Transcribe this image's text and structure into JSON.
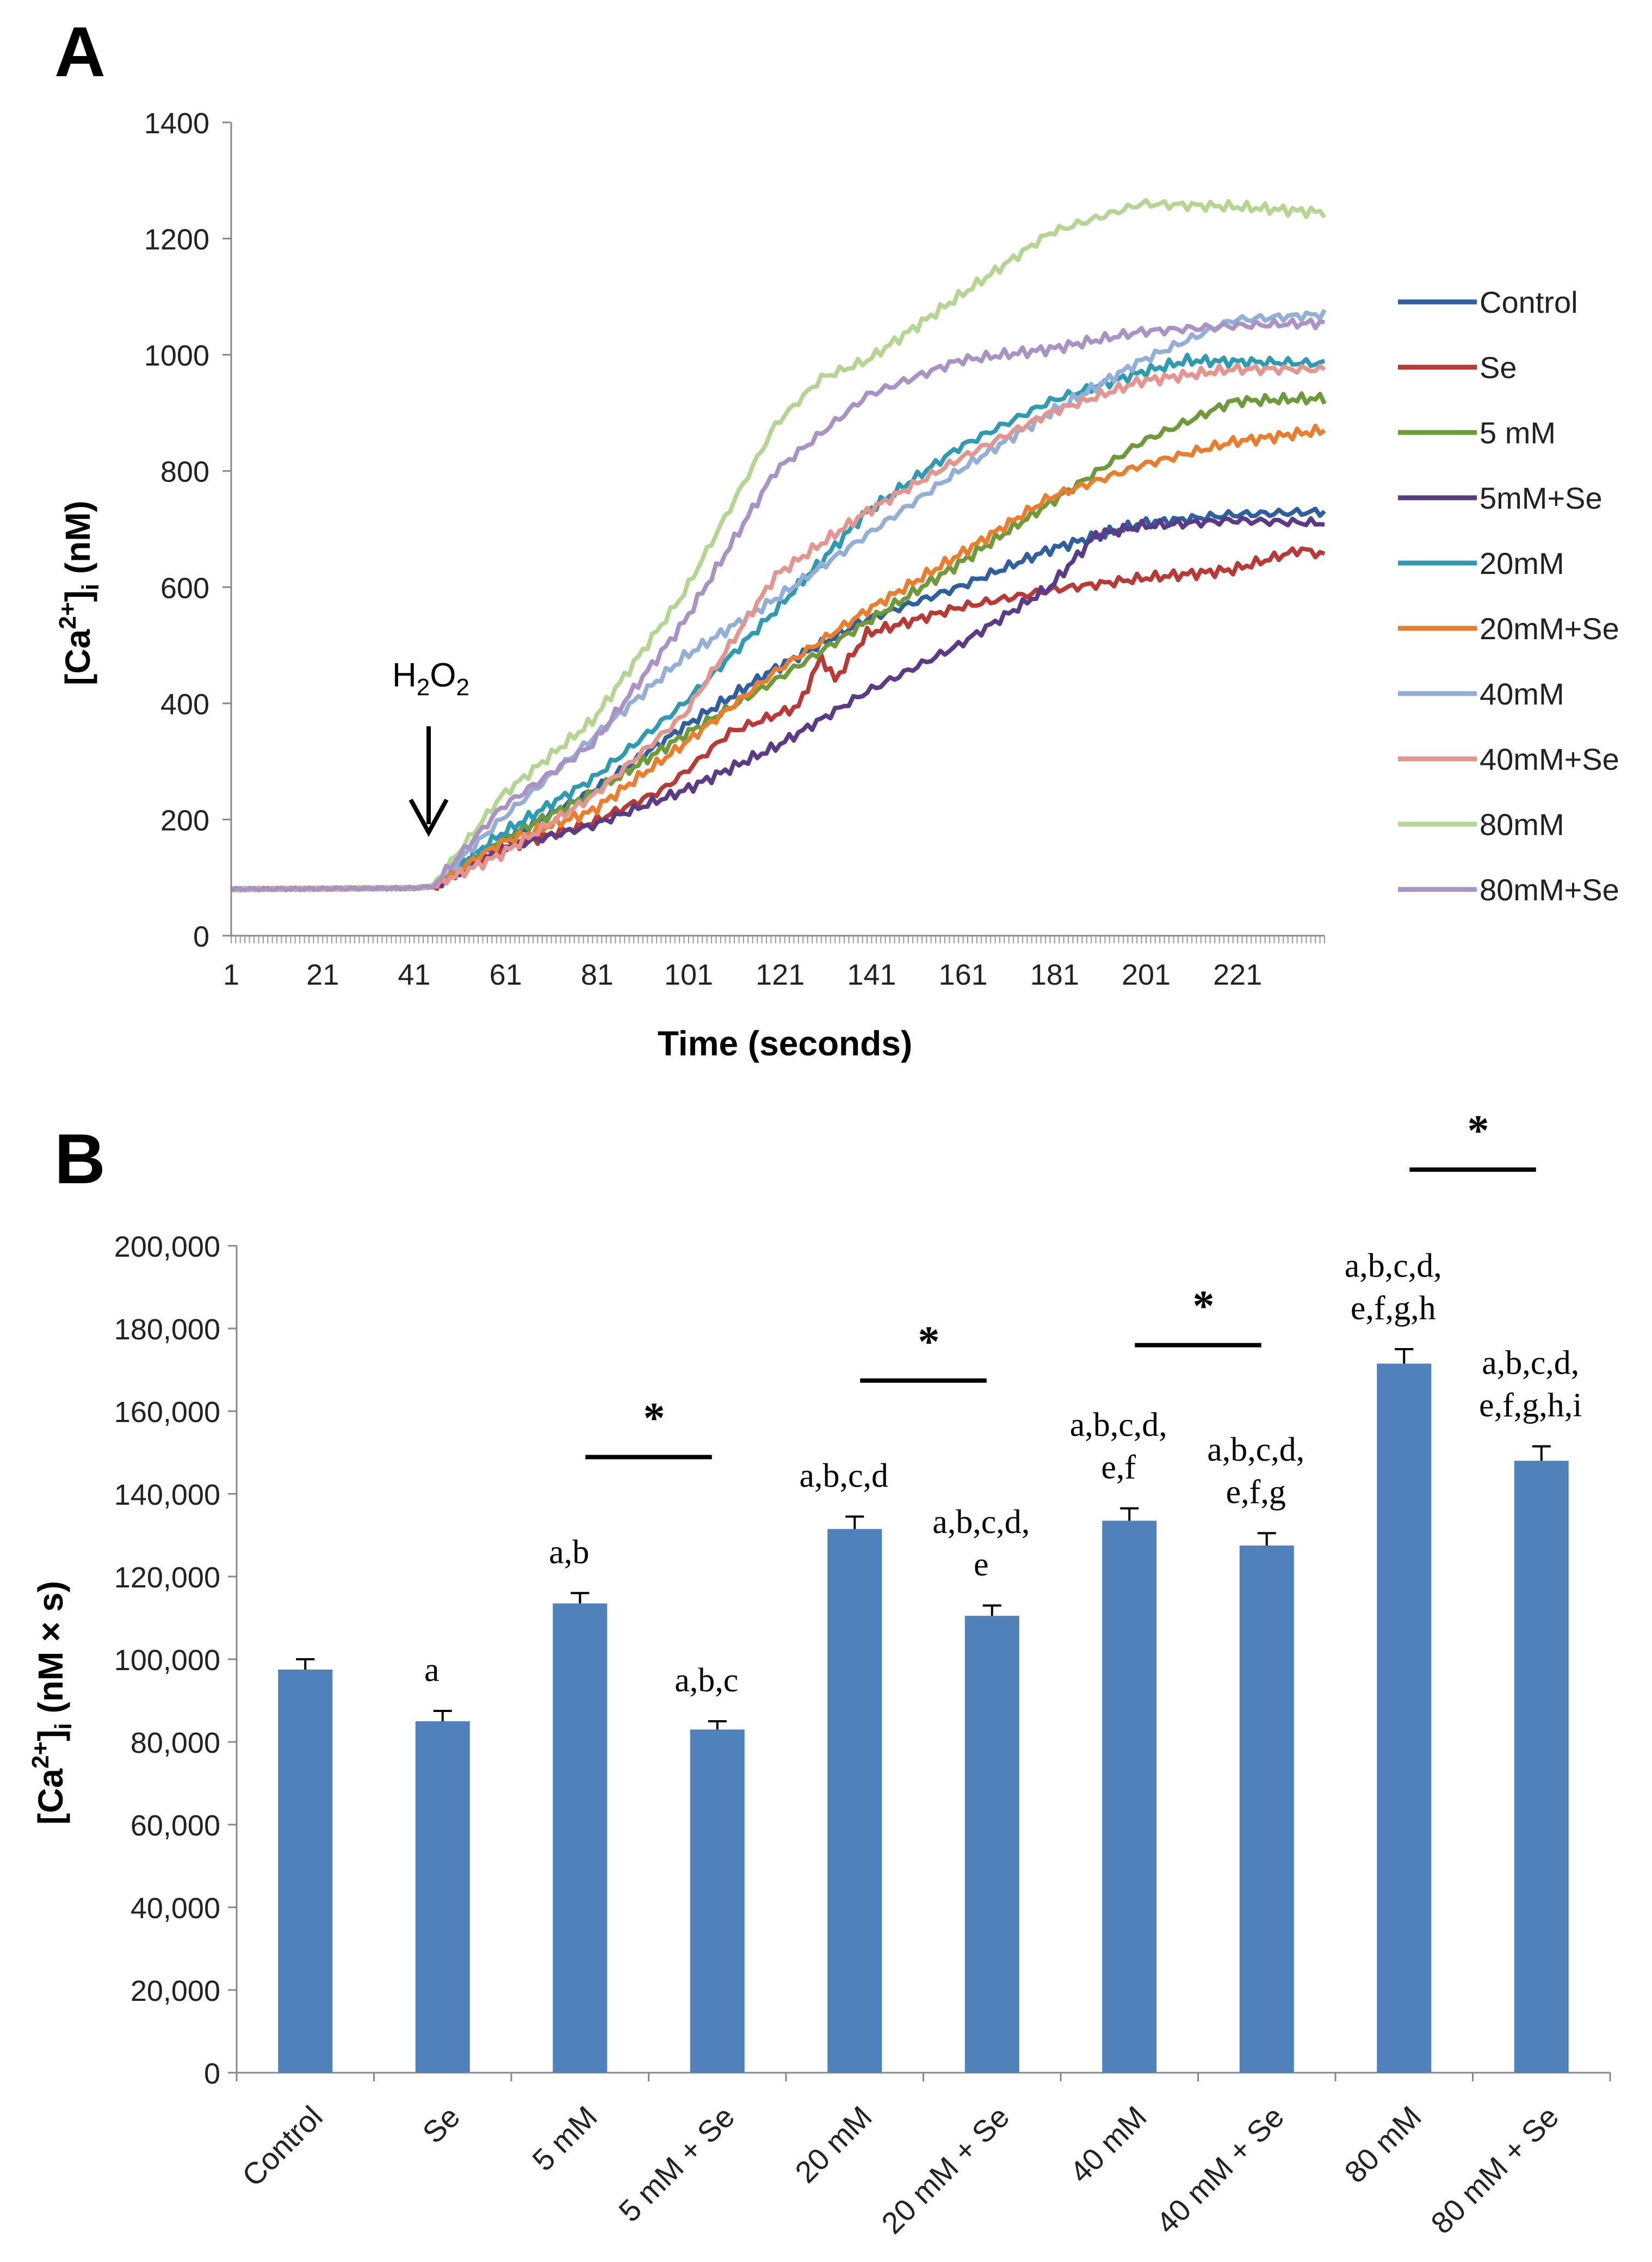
{
  "panelA": {
    "panel_label": "A",
    "arrow_label": {
      "main": "H",
      "sub1": "2",
      "mid": "O",
      "sub2": "2"
    },
    "chart_data": {
      "type": "line",
      "title": "",
      "xlabel": "Time (seconds)",
      "ylabel": {
        "prefix": "[Ca",
        "sup": "2+",
        "mid": "]",
        "sub": "i",
        "suffix": " (nM)"
      },
      "x_range": [
        1,
        240
      ],
      "xticks": [
        1,
        21,
        41,
        61,
        81,
        101,
        121,
        141,
        161,
        181,
        201,
        221
      ],
      "ylim": [
        0,
        1400
      ],
      "yticks": [
        0,
        200,
        400,
        600,
        800,
        1000,
        1200,
        1400
      ],
      "legend_position": "right",
      "series": [
        {
          "name": "Control",
          "color": "#2f5f9e",
          "points": [
            [
              1,
              80
            ],
            [
              41,
              82
            ],
            [
              45,
              85
            ],
            [
              60,
              160
            ],
            [
              80,
              250
            ],
            [
              100,
              360
            ],
            [
              120,
              460
            ],
            [
              140,
              545
            ],
            [
              160,
              600
            ],
            [
              180,
              665
            ],
            [
              200,
              710
            ],
            [
              220,
              725
            ],
            [
              240,
              730
            ]
          ]
        },
        {
          "name": "Se",
          "color": "#b83a36",
          "points": [
            [
              1,
              80
            ],
            [
              41,
              82
            ],
            [
              45,
              85
            ],
            [
              60,
              150
            ],
            [
              80,
              195
            ],
            [
              95,
              250
            ],
            [
              100,
              280
            ],
            [
              110,
              350
            ],
            [
              125,
              395
            ],
            [
              130,
              480
            ],
            [
              133,
              440
            ],
            [
              140,
              520
            ],
            [
              160,
              565
            ],
            [
              180,
              595
            ],
            [
              200,
              615
            ],
            [
              220,
              630
            ],
            [
              235,
              665
            ],
            [
              240,
              655
            ]
          ]
        },
        {
          "name": "5 mM",
          "color": "#6f9a3c",
          "points": [
            [
              1,
              80
            ],
            [
              41,
              82
            ],
            [
              45,
              85
            ],
            [
              60,
              165
            ],
            [
              80,
              245
            ],
            [
              100,
              345
            ],
            [
              120,
              440
            ],
            [
              140,
              540
            ],
            [
              160,
              640
            ],
            [
              180,
              745
            ],
            [
              200,
              850
            ],
            [
              220,
              920
            ],
            [
              240,
              925
            ]
          ]
        },
        {
          "name": "5mM+Se",
          "color": "#5a3b85",
          "points": [
            [
              1,
              80
            ],
            [
              41,
              82
            ],
            [
              45,
              85
            ],
            [
              60,
              150
            ],
            [
              80,
              190
            ],
            [
              100,
              250
            ],
            [
              120,
              325
            ],
            [
              140,
              420
            ],
            [
              160,
              500
            ],
            [
              180,
              600
            ],
            [
              190,
              690
            ],
            [
              200,
              705
            ],
            [
              220,
              715
            ],
            [
              240,
              710
            ]
          ]
        },
        {
          "name": "20mM",
          "color": "#2e9bb0",
          "points": [
            [
              1,
              80
            ],
            [
              41,
              82
            ],
            [
              45,
              85
            ],
            [
              60,
              175
            ],
            [
              80,
              270
            ],
            [
              100,
              400
            ],
            [
              120,
              560
            ],
            [
              140,
              730
            ],
            [
              160,
              840
            ],
            [
              180,
              920
            ],
            [
              200,
              970
            ],
            [
              210,
              990
            ],
            [
              240,
              985
            ]
          ]
        },
        {
          "name": "20mM+Se",
          "color": "#e87e2e",
          "points": [
            [
              1,
              80
            ],
            [
              41,
              82
            ],
            [
              45,
              85
            ],
            [
              60,
              160
            ],
            [
              80,
              215
            ],
            [
              100,
              330
            ],
            [
              120,
              455
            ],
            [
              140,
              560
            ],
            [
              160,
              655
            ],
            [
              180,
              755
            ],
            [
              200,
              810
            ],
            [
              220,
              850
            ],
            [
              240,
              870
            ]
          ]
        },
        {
          "name": "40mM",
          "color": "#93afd6",
          "points": [
            [
              1,
              80
            ],
            [
              41,
              82
            ],
            [
              45,
              85
            ],
            [
              60,
              200
            ],
            [
              80,
              340
            ],
            [
              100,
              480
            ],
            [
              120,
              580
            ],
            [
              140,
              690
            ],
            [
              160,
              800
            ],
            [
              180,
              900
            ],
            [
              200,
              990
            ],
            [
              220,
              1060
            ],
            [
              240,
              1070
            ]
          ]
        },
        {
          "name": "40mM+Se",
          "color": "#e39590",
          "points": [
            [
              1,
              80
            ],
            [
              41,
              82
            ],
            [
              45,
              85
            ],
            [
              60,
              140
            ],
            [
              80,
              240
            ],
            [
              100,
              380
            ],
            [
              120,
              620
            ],
            [
              140,
              730
            ],
            [
              160,
              820
            ],
            [
              180,
              900
            ],
            [
              200,
              955
            ],
            [
              220,
              975
            ],
            [
              240,
              975
            ]
          ]
        },
        {
          "name": "80mM",
          "color": "#b5d693",
          "points": [
            [
              1,
              80
            ],
            [
              41,
              82
            ],
            [
              45,
              85
            ],
            [
              60,
              240
            ],
            [
              80,
              370
            ],
            [
              100,
              590
            ],
            [
              120,
              880
            ],
            [
              130,
              960
            ],
            [
              140,
              990
            ],
            [
              160,
              1100
            ],
            [
              180,
              1210
            ],
            [
              200,
              1260
            ],
            [
              220,
              1255
            ],
            [
              240,
              1245
            ]
          ]
        },
        {
          "name": "80mM+Se",
          "color": "#a893c4",
          "points": [
            [
              1,
              80
            ],
            [
              41,
              82
            ],
            [
              45,
              85
            ],
            [
              60,
              220
            ],
            [
              80,
              330
            ],
            [
              100,
              540
            ],
            [
              120,
              800
            ],
            [
              140,
              930
            ],
            [
              160,
              990
            ],
            [
              180,
              1010
            ],
            [
              200,
              1040
            ],
            [
              220,
              1050
            ],
            [
              240,
              1055
            ]
          ]
        }
      ]
    }
  },
  "panelB": {
    "panel_label": "B",
    "chart_data": {
      "type": "bar",
      "title": "",
      "xlabel": "",
      "ylabel": {
        "prefix": "[Ca",
        "sup": "2+",
        "mid": "]",
        "sub": "i",
        "suffix": " (nM × s)"
      },
      "ylim": [
        0,
        200000
      ],
      "yticks": [
        0,
        20000,
        40000,
        60000,
        80000,
        100000,
        120000,
        140000,
        160000,
        180000,
        200000
      ],
      "ytick_labels": [
        "0",
        "20,000",
        "40,000",
        "60,000",
        "80,000",
        "100,000",
        "120,000",
        "140,000",
        "160,000",
        "180,000",
        "200,000"
      ],
      "bar_color": "#4f81bd",
      "categories": [
        "Control",
        "Se",
        "5 mM",
        "5 mM + Se",
        "20 mM",
        "20 mM + Se",
        "40 mM",
        "40 mM + Se",
        "80 mM",
        "80 mM + Se"
      ],
      "values": [
        97500,
        85000,
        113500,
        83000,
        131500,
        110500,
        133500,
        127500,
        171500,
        148000
      ],
      "errors": [
        2500,
        2500,
        2500,
        2000,
        3000,
        2500,
        3000,
        3000,
        3500,
        3500
      ],
      "annotations": [
        {
          "bar": 0,
          "lines": []
        },
        {
          "bar": 1,
          "lines": [
            "a"
          ]
        },
        {
          "bar": 2,
          "lines": [
            "a,b"
          ]
        },
        {
          "bar": 3,
          "lines": [
            "a,b,c"
          ]
        },
        {
          "bar": 4,
          "lines": [
            "a,b,c,d"
          ]
        },
        {
          "bar": 5,
          "lines": [
            "a,b,c,d,",
            "e"
          ]
        },
        {
          "bar": 6,
          "lines": [
            "a,b,c,d,",
            "e,f"
          ]
        },
        {
          "bar": 7,
          "lines": [
            "a,b,c,d,",
            "e,f,g"
          ]
        },
        {
          "bar": 8,
          "lines": [
            "a,b,c,d,",
            "e,f,g,h"
          ]
        },
        {
          "bar": 9,
          "lines": [
            "a,b,c,d,",
            "e,f,g,h,i"
          ]
        }
      ],
      "significance": [
        {
          "between": [
            2,
            3
          ],
          "label": "*"
        },
        {
          "between": [
            4,
            5
          ],
          "label": "*"
        },
        {
          "between": [
            6,
            7
          ],
          "label": "*"
        },
        {
          "between": [
            8,
            9
          ],
          "label": "*"
        }
      ]
    }
  }
}
